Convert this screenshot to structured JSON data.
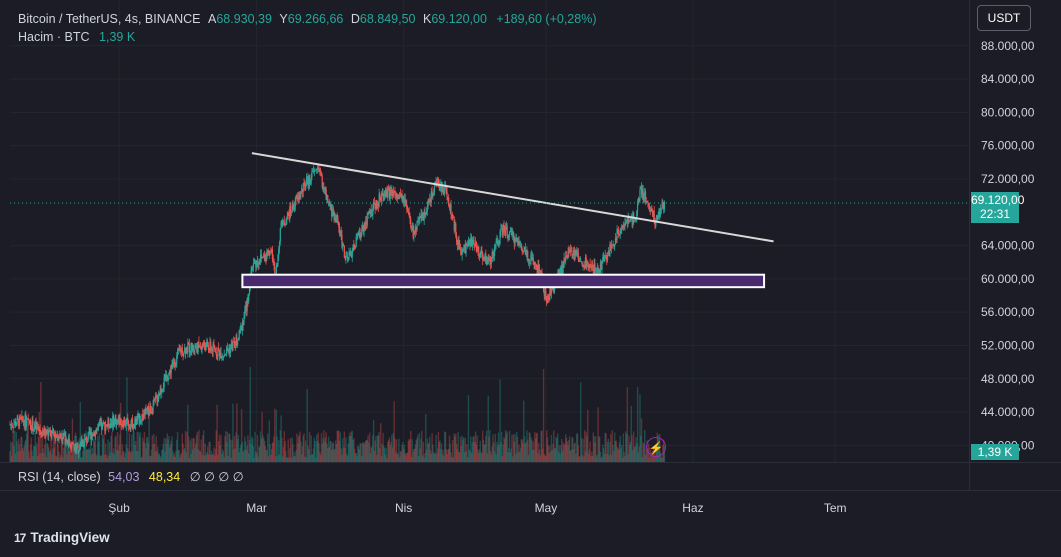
{
  "legend": {
    "symbol": "Bitcoin / TetherUS, 4s, BINANCE",
    "open_label": "A",
    "open": "68.930,39",
    "high_label": "Y",
    "high": "69.266,66",
    "low_label": "D",
    "low": "68.849,50",
    "close_label": "K",
    "close": "69.120,00",
    "change": "+189,60 (+0,28%)",
    "volume_label": "Hacim · BTC",
    "volume": "1,39 K"
  },
  "currency_button": "USDT",
  "rsi": {
    "label": "RSI (14, close)",
    "value1": "54,03",
    "value2": "48,34",
    "empty_values": "∅ ∅ ∅ ∅"
  },
  "price_tag": {
    "price": "69.120,00",
    "countdown": "22:31"
  },
  "volume_tag": "1,39 K",
  "brand": {
    "logo": "17",
    "name": "TradingView"
  },
  "colors": {
    "background": "#1b1c25",
    "up": "#26a69a",
    "down": "#ef5350",
    "trendline": "#d8d8d8",
    "support_box_border": "#ffffff",
    "support_box_fill": "#4a2a6e"
  },
  "icons": {
    "alert": "lightning-icon"
  },
  "chart_data": {
    "type": "candlestick",
    "y_ticks": [
      "88.000,00",
      "84.000,00",
      "80.000,00",
      "76.000,00",
      "72.000,00",
      "64.000,00",
      "60.000,00",
      "56.000,00",
      "52.000,00",
      "48.000,00",
      "44.000,00",
      "40.000,00"
    ],
    "y_tick_values": [
      88000,
      84000,
      80000,
      76000,
      72000,
      64000,
      60000,
      56000,
      52000,
      48000,
      44000,
      40000
    ],
    "x_ticks": [
      "Şub",
      "Mar",
      "Nis",
      "May",
      "Haz",
      "Tem"
    ],
    "x_tick_dates": [
      "2024-02-01",
      "2024-03-01",
      "2024-04-01",
      "2024-05-01",
      "2024-06-01",
      "2024-07-01"
    ],
    "x_range": [
      "2024-01-09",
      "2024-07-29"
    ],
    "ylim": [
      38000,
      93500
    ],
    "current_price": 69120,
    "price_path": [
      [
        "2024-01-09",
        42500
      ],
      [
        "2024-01-12",
        43000
      ],
      [
        "2024-01-16",
        41500
      ],
      [
        "2024-01-20",
        41200
      ],
      [
        "2024-01-23",
        39500
      ],
      [
        "2024-01-27",
        41800
      ],
      [
        "2024-01-31",
        43000
      ],
      [
        "2024-02-04",
        42600
      ],
      [
        "2024-02-08",
        44500
      ],
      [
        "2024-02-10",
        47000
      ],
      [
        "2024-02-14",
        51500
      ],
      [
        "2024-02-19",
        52000
      ],
      [
        "2024-02-23",
        51000
      ],
      [
        "2024-02-26",
        52500
      ],
      [
        "2024-02-28",
        57000
      ],
      [
        "2024-02-29",
        61500
      ],
      [
        "2024-03-01",
        62000
      ],
      [
        "2024-03-04",
        63500
      ],
      [
        "2024-03-05",
        60000
      ],
      [
        "2024-03-06",
        66000
      ],
      [
        "2024-03-08",
        68000
      ],
      [
        "2024-03-11",
        71000
      ],
      [
        "2024-03-14",
        73500
      ],
      [
        "2024-03-16",
        69000
      ],
      [
        "2024-03-18",
        67000
      ],
      [
        "2024-03-20",
        62000
      ],
      [
        "2024-03-22",
        64500
      ],
      [
        "2024-03-25",
        68000
      ],
      [
        "2024-03-28",
        70500
      ],
      [
        "2024-04-01",
        69500
      ],
      [
        "2024-04-03",
        65500
      ],
      [
        "2024-04-05",
        67500
      ],
      [
        "2024-04-08",
        71500
      ],
      [
        "2024-04-10",
        70500
      ],
      [
        "2024-04-13",
        63000
      ],
      [
        "2024-04-15",
        64500
      ],
      [
        "2024-04-19",
        62000
      ],
      [
        "2024-04-22",
        66000
      ],
      [
        "2024-04-25",
        64500
      ],
      [
        "2024-04-30",
        60500
      ],
      [
        "2024-05-01",
        57500
      ],
      [
        "2024-05-03",
        59500
      ],
      [
        "2024-05-06",
        63500
      ],
      [
        "2024-05-09",
        62000
      ],
      [
        "2024-05-12",
        61000
      ],
      [
        "2024-05-15",
        64000
      ],
      [
        "2024-05-17",
        66500
      ],
      [
        "2024-05-20",
        67500
      ],
      [
        "2024-05-21",
        71000
      ],
      [
        "2024-05-23",
        68500
      ],
      [
        "2024-05-24",
        67000
      ],
      [
        "2024-05-26",
        69120
      ]
    ],
    "volume_unit": "K",
    "trendline": {
      "start": [
        "2024-02-29",
        75100
      ],
      "end": [
        "2024-06-18",
        64500
      ]
    },
    "support_zone": {
      "start": "2024-02-27",
      "end": "2024-06-16",
      "low": 59000,
      "high": 60500
    }
  }
}
